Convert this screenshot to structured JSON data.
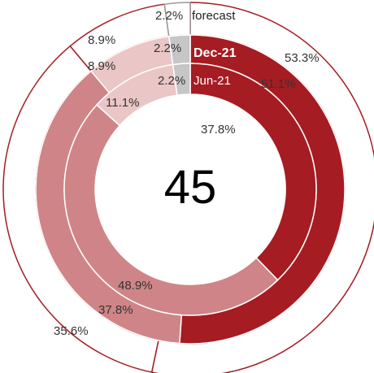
{
  "chart_data": {
    "type": "pie",
    "center_value": "45",
    "categories": [
      "dark",
      "medium",
      "light",
      "grey"
    ],
    "colors": {
      "dark": "#a51c22",
      "medium": "#cf8587",
      "light": "#ebc6c6",
      "grey": "#c6c6c6",
      "outline": "#a51c22",
      "ring_outline": "#d28c8d"
    },
    "series": [
      {
        "name": "forecast",
        "values": [
          53.3,
          35.6,
          8.9,
          2.2
        ],
        "labels": [
          "53.3%",
          "35.6%",
          "8.9%",
          "2.2%"
        ]
      },
      {
        "name": "Dec-21",
        "values": [
          51.1,
          37.8,
          8.9,
          2.2
        ],
        "labels": [
          "51.1%",
          "37.8%",
          "8.9%",
          "2.2%"
        ]
      },
      {
        "name": "Jun-21",
        "values": [
          37.8,
          48.9,
          11.1,
          2.2
        ],
        "labels": [
          "37.8%",
          "48.9%",
          "11.1%",
          "2.2%"
        ]
      }
    ]
  }
}
